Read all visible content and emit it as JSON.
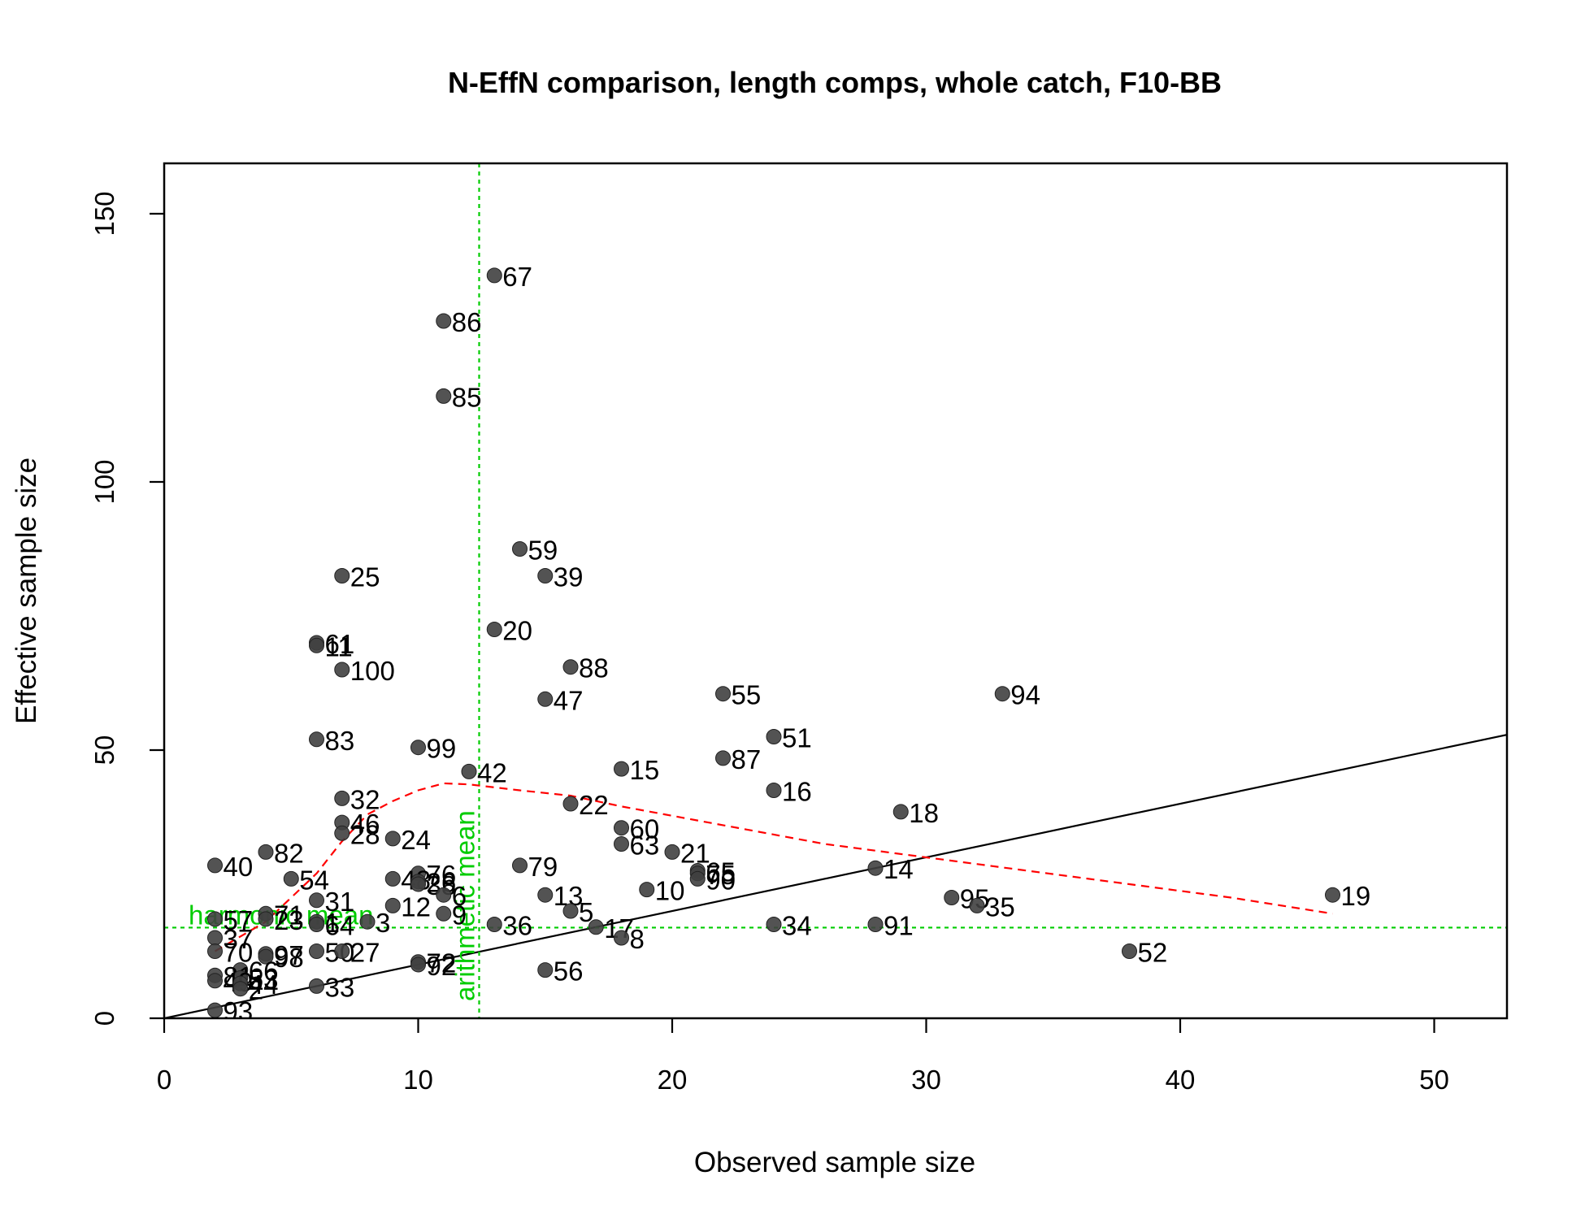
{
  "chart_data": {
    "type": "scatter",
    "title": "N-EffN comparison, length comps, whole catch, F10-BB",
    "xlabel": "Observed sample size",
    "ylabel": "Effective sample size",
    "xlim": [
      0,
      53
    ],
    "ylim": [
      0,
      160
    ],
    "x_ticks": [
      0,
      10,
      20,
      30,
      40,
      50
    ],
    "y_ticks": [
      0,
      50,
      100,
      150
    ],
    "grid": false,
    "legend": "none",
    "point_color": "#404040",
    "identity_line_color": "#000000",
    "smoother_color": "#ff0000",
    "reference_color": "#00cc00",
    "reference_lines": {
      "harmonic_mean": {
        "label": "harmonic mean",
        "y": 16.9
      },
      "arithmetic_mean": {
        "label": "arithmetic mean",
        "x": 12.4
      }
    },
    "points": [
      {
        "label": "67",
        "x": 13,
        "y": 138.5
      },
      {
        "label": "86",
        "x": 11,
        "y": 130
      },
      {
        "label": "85",
        "x": 11,
        "y": 116
      },
      {
        "label": "59",
        "x": 14,
        "y": 87.5
      },
      {
        "label": "39",
        "x": 15,
        "y": 82.5
      },
      {
        "label": "25",
        "x": 7,
        "y": 82.5
      },
      {
        "label": "20",
        "x": 13,
        "y": 72.5
      },
      {
        "label": "61",
        "x": 6,
        "y": 70
      },
      {
        "label": "11",
        "x": 6,
        "y": 69.5
      },
      {
        "label": "100",
        "x": 7,
        "y": 65
      },
      {
        "label": "88",
        "x": 16,
        "y": 65.5
      },
      {
        "label": "55",
        "x": 22,
        "y": 60.5
      },
      {
        "label": "94",
        "x": 33,
        "y": 60.5
      },
      {
        "label": "47",
        "x": 15,
        "y": 59.5
      },
      {
        "label": "51",
        "x": 24,
        "y": 52.5
      },
      {
        "label": "83",
        "x": 6,
        "y": 52
      },
      {
        "label": "99",
        "x": 10,
        "y": 50.5
      },
      {
        "label": "87",
        "x": 22,
        "y": 48.5
      },
      {
        "label": "42",
        "x": 12,
        "y": 46
      },
      {
        "label": "15",
        "x": 18,
        "y": 46.5
      },
      {
        "label": "16",
        "x": 24,
        "y": 42.5
      },
      {
        "label": "32",
        "x": 7,
        "y": 41
      },
      {
        "label": "22",
        "x": 16,
        "y": 40
      },
      {
        "label": "18",
        "x": 29,
        "y": 38.5
      },
      {
        "label": "46",
        "x": 7,
        "y": 36.5
      },
      {
        "label": "60",
        "x": 18,
        "y": 35.5
      },
      {
        "label": "28",
        "x": 7,
        "y": 34.5
      },
      {
        "label": "24",
        "x": 9,
        "y": 33.5
      },
      {
        "label": "63",
        "x": 18,
        "y": 32.5
      },
      {
        "label": "82",
        "x": 4,
        "y": 31
      },
      {
        "label": "21",
        "x": 20,
        "y": 31
      },
      {
        "label": "40",
        "x": 2,
        "y": 28.5
      },
      {
        "label": "79",
        "x": 14,
        "y": 28.5
      },
      {
        "label": "14",
        "x": 28,
        "y": 28
      },
      {
        "label": "65",
        "x": 21,
        "y": 27.5
      },
      {
        "label": "75",
        "x": 21,
        "y": 27
      },
      {
        "label": "76",
        "x": 10,
        "y": 27
      },
      {
        "label": "54",
        "x": 5,
        "y": 26
      },
      {
        "label": "90",
        "x": 21,
        "y": 26
      },
      {
        "label": "48",
        "x": 9,
        "y": 26
      },
      {
        "label": "26",
        "x": 10,
        "y": 25.5
      },
      {
        "label": "38",
        "x": 10,
        "y": 25
      },
      {
        "label": "10",
        "x": 19,
        "y": 24
      },
      {
        "label": "6",
        "x": 11,
        "y": 23
      },
      {
        "label": "13",
        "x": 15,
        "y": 23
      },
      {
        "label": "95",
        "x": 31,
        "y": 22.5
      },
      {
        "label": "19",
        "x": 46,
        "y": 23
      },
      {
        "label": "31",
        "x": 6,
        "y": 22
      },
      {
        "label": "12",
        "x": 9,
        "y": 21
      },
      {
        "label": "35",
        "x": 32,
        "y": 21
      },
      {
        "label": "5",
        "x": 16,
        "y": 20
      },
      {
        "label": "71",
        "x": 4,
        "y": 19.5
      },
      {
        "label": "9",
        "x": 11,
        "y": 19.5
      },
      {
        "label": "57",
        "x": 2,
        "y": 18.5
      },
      {
        "label": "23",
        "x": 4,
        "y": 18.5
      },
      {
        "label": "1",
        "x": 6,
        "y": 18
      },
      {
        "label": "3",
        "x": 8,
        "y": 18
      },
      {
        "label": "64",
        "x": 6,
        "y": 17.5
      },
      {
        "label": "36",
        "x": 13,
        "y": 17.5
      },
      {
        "label": "34",
        "x": 24,
        "y": 17.5
      },
      {
        "label": "91",
        "x": 28,
        "y": 17.5
      },
      {
        "label": "17",
        "x": 17,
        "y": 17
      },
      {
        "label": "37",
        "x": 2,
        "y": 15
      },
      {
        "label": "8",
        "x": 18,
        "y": 15
      },
      {
        "label": "52",
        "x": 38,
        "y": 12.5
      },
      {
        "label": "70",
        "x": 2,
        "y": 12.5
      },
      {
        "label": "50",
        "x": 6,
        "y": 12.5
      },
      {
        "label": "27",
        "x": 7,
        "y": 12.5
      },
      {
        "label": "97",
        "x": 4,
        "y": 12
      },
      {
        "label": "98",
        "x": 4,
        "y": 11.5
      },
      {
        "label": "72",
        "x": 10,
        "y": 10.5
      },
      {
        "label": "92",
        "x": 10,
        "y": 10
      },
      {
        "label": "56",
        "x": 15,
        "y": 9
      },
      {
        "label": "66",
        "x": 3,
        "y": 9
      },
      {
        "label": "81",
        "x": 2,
        "y": 8
      },
      {
        "label": "53",
        "x": 3,
        "y": 7.5
      },
      {
        "label": "49",
        "x": 2,
        "y": 7
      },
      {
        "label": "44",
        "x": 3,
        "y": 6.5
      },
      {
        "label": "33",
        "x": 6,
        "y": 6
      },
      {
        "label": "2",
        "x": 3,
        "y": 5.5
      },
      {
        "label": "93",
        "x": 2,
        "y": 1.5
      }
    ],
    "smoother": [
      {
        "x": 2,
        "y": 12.5
      },
      {
        "x": 4,
        "y": 18
      },
      {
        "x": 6,
        "y": 27
      },
      {
        "x": 7,
        "y": 33
      },
      {
        "x": 8,
        "y": 38
      },
      {
        "x": 9,
        "y": 40.5
      },
      {
        "x": 10,
        "y": 42.5
      },
      {
        "x": 11,
        "y": 43.8
      },
      {
        "x": 12,
        "y": 43.6
      },
      {
        "x": 14,
        "y": 42.5
      },
      {
        "x": 16,
        "y": 41.5
      },
      {
        "x": 18,
        "y": 39.5
      },
      {
        "x": 22,
        "y": 36
      },
      {
        "x": 26,
        "y": 32.5
      },
      {
        "x": 30,
        "y": 30
      },
      {
        "x": 34,
        "y": 27.5
      },
      {
        "x": 38,
        "y": 25
      },
      {
        "x": 42,
        "y": 22.5
      },
      {
        "x": 46,
        "y": 19.5
      }
    ]
  }
}
